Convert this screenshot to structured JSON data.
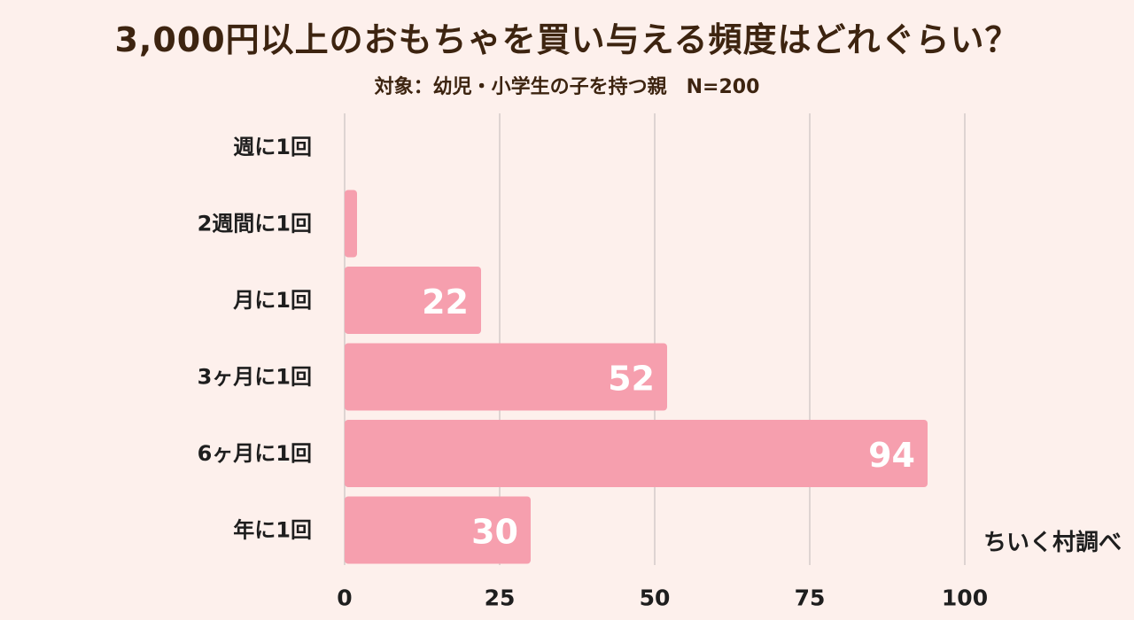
{
  "chart_data": {
    "type": "bar",
    "orientation": "horizontal",
    "title": "3,000円以上のおもちゃを買い与える頻度はどれぐらい？",
    "subtitle": "対象：幼児・小学生の子を持つ親　N=200",
    "categories": [
      "週に1回",
      "2週間に1回",
      "月に1回",
      "3ヶ月に1回",
      "6ヶ月に1回",
      "年に1回"
    ],
    "values": [
      0,
      2,
      22,
      52,
      94,
      30
    ],
    "data_labels": [
      "",
      "",
      "22",
      "52",
      "94",
      "30"
    ],
    "xlim": [
      0,
      100
    ],
    "xticks": [
      "0",
      "25",
      "50",
      "75",
      "100"
    ],
    "grid": true,
    "colors": {
      "bar": "#f69fae",
      "background": "#fdf0ec",
      "grid": "#c9c2c0",
      "title": "#3d2410"
    }
  },
  "credit": "ちいく村調べ"
}
